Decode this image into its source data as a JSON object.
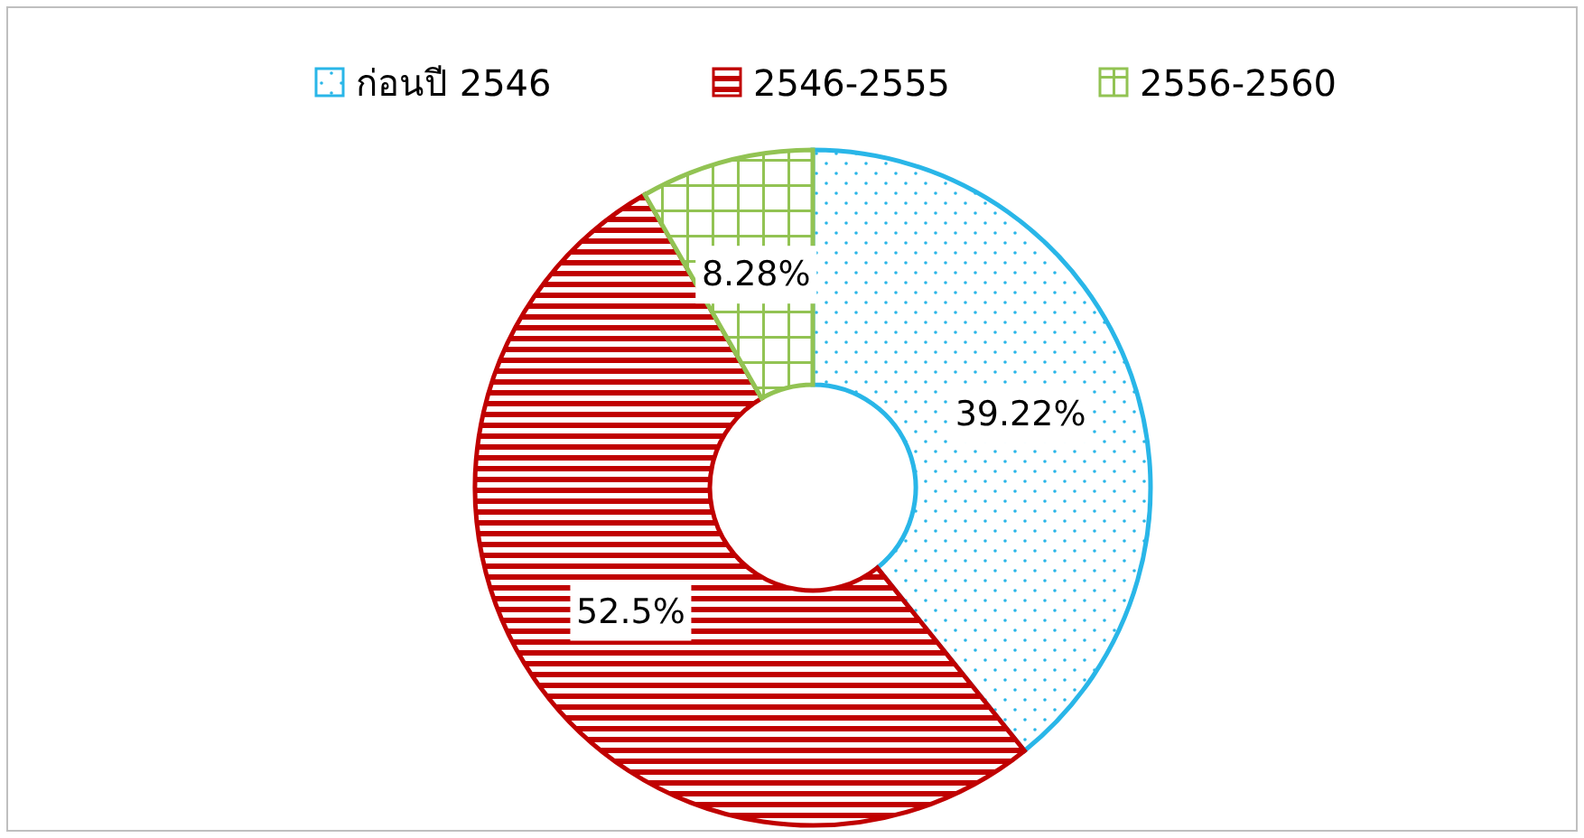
{
  "chart_data": {
    "type": "donut",
    "categories": [
      "ก่อนปี 2546",
      "2546-2555",
      "2556-2560"
    ],
    "values": [
      39.22,
      52.5,
      8.28
    ],
    "colors": [
      "#29b6e8",
      "#c00000",
      "#92c353"
    ],
    "value_labels": [
      "39.22%",
      "52.5%",
      "8.28%"
    ],
    "legend": "top"
  }
}
